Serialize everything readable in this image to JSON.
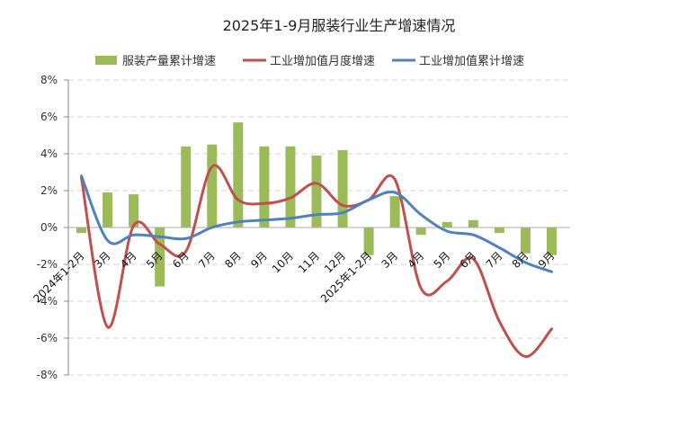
{
  "chart_data": {
    "type": "bar",
    "title": "2025年1-9月服装行业生产增速情况",
    "categories": [
      "2024年1-2月",
      "3月",
      "4月",
      "5月",
      "6月",
      "7月",
      "8月",
      "9月",
      "10月",
      "11月",
      "12月",
      "2025年1-2月",
      "3月",
      "4月",
      "5月",
      "6月",
      "7月",
      "8月",
      "9月"
    ],
    "series": [
      {
        "name": "服装产量累计增速",
        "kind": "bar",
        "color": "#9bbb59",
        "values": [
          -0.3,
          1.9,
          1.8,
          -3.2,
          4.4,
          4.5,
          5.7,
          4.4,
          4.4,
          3.9,
          4.2,
          -1.5,
          1.7,
          -0.4,
          0.3,
          0.4,
          -0.3,
          -1.4,
          -1.5
        ]
      },
      {
        "name": "工业增加值月度增速",
        "kind": "line",
        "color": "#c0504d",
        "values": [
          2.7,
          -5.4,
          0.1,
          -0.9,
          -1.3,
          3.3,
          1.5,
          1.3,
          1.6,
          2.4,
          1.2,
          1.5,
          2.6,
          -3.3,
          -2.9,
          -1.7,
          -5.1,
          -7.0,
          -5.5
        ]
      },
      {
        "name": "工业增加值累计增速",
        "kind": "line",
        "color": "#4f81bd",
        "values": [
          2.8,
          -0.7,
          -0.4,
          -0.5,
          -0.6,
          0.0,
          0.3,
          0.4,
          0.5,
          0.7,
          0.8,
          1.5,
          1.9,
          0.7,
          -0.2,
          -0.4,
          -1.1,
          -1.9,
          -2.4
        ]
      }
    ],
    "ylim": [
      -8,
      8
    ],
    "yticks": [
      -8,
      -6,
      -4,
      -2,
      0,
      2,
      4,
      6,
      8
    ],
    "ytick_format": "%",
    "xlabel": "",
    "ylabel": "",
    "legend": "top-center",
    "grid": true
  }
}
